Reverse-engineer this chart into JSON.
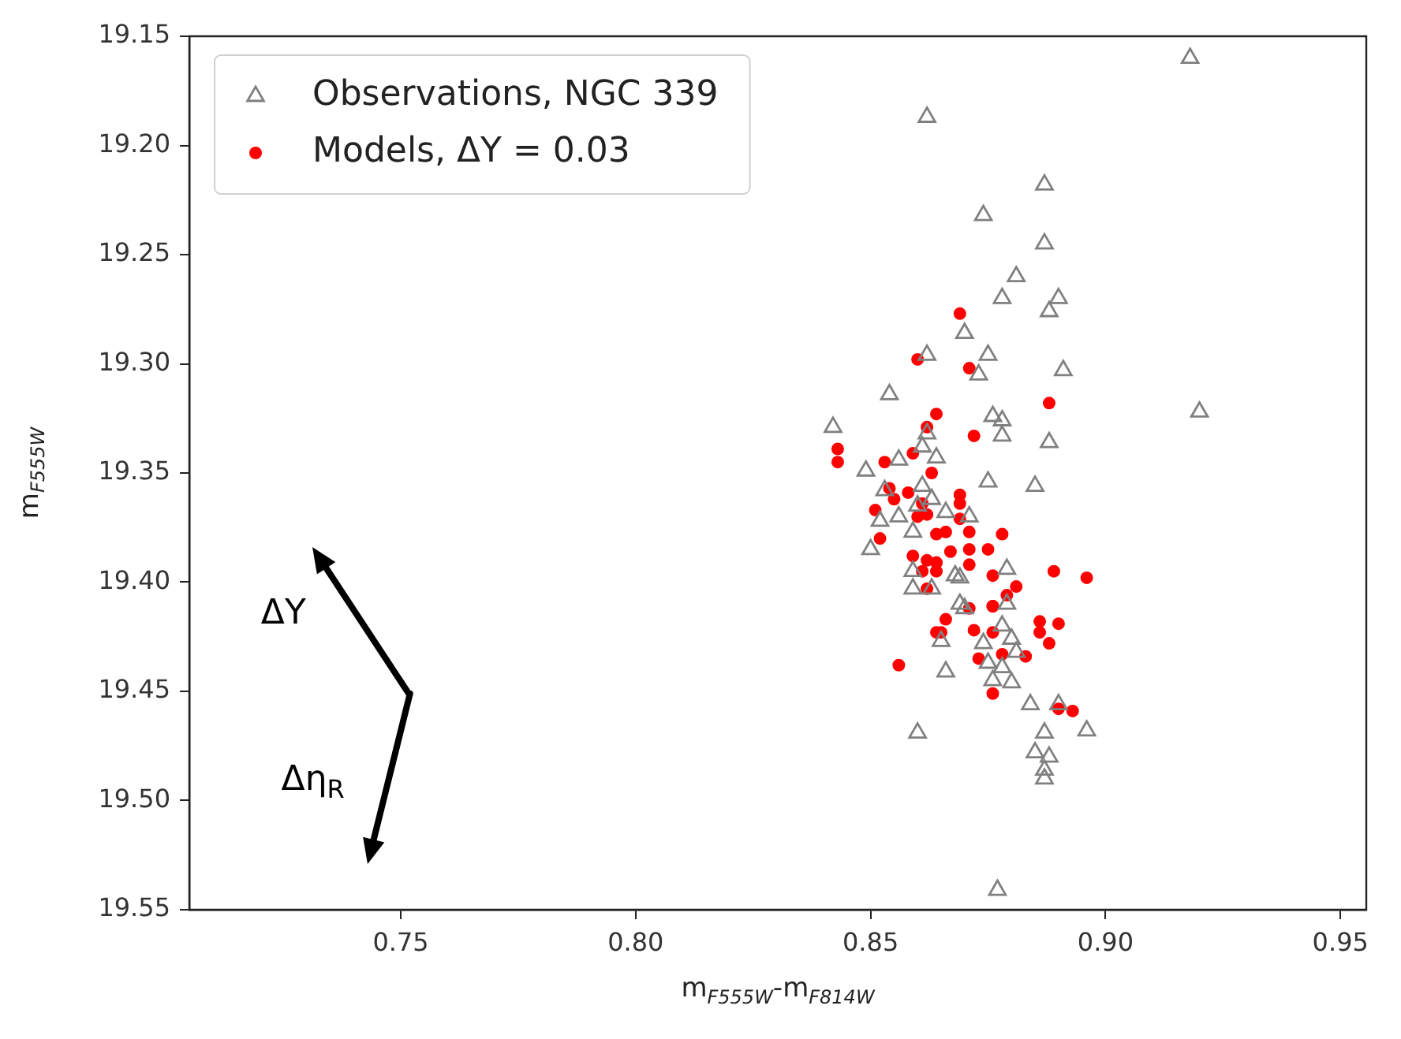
{
  "chart_data": {
    "type": "scatter",
    "xlabel": "m$_{F555W}$-m$_{F814W}$",
    "ylabel": "m$_{F555W}$",
    "xlim": [
      0.705,
      0.9555
    ],
    "xticks": [
      0.75,
      {
        "value": 0.8,
        "label": "0.80"
      },
      0.85,
      {
        "value": 0.9,
        "label": "0.90"
      },
      0.95
    ],
    "ylim": [
      19.55,
      19.15
    ],
    "yticks": [
      19.15,
      {
        "value": 19.2,
        "label": "19.20"
      },
      19.25,
      {
        "value": 19.3,
        "label": "19.30"
      },
      19.35,
      {
        "value": 19.4,
        "label": "19.40"
      },
      19.45,
      {
        "value": 19.5,
        "label": "19.50"
      },
      19.55
    ],
    "grid": false,
    "legend": "top left",
    "annotations": [
      "ΔY",
      "Δη$_{R}$"
    ],
    "series": [
      {
        "name": "Observations, NGC 339",
        "color": "#808080",
        "marker": "triangle",
        "x": [
          0.918,
          0.862,
          0.887,
          0.874,
          0.887,
          0.881,
          0.878,
          0.89,
          0.888,
          0.87,
          0.862,
          0.875,
          0.873,
          0.891,
          0.854,
          0.876,
          0.878,
          0.92,
          0.842,
          0.878,
          0.888,
          0.862,
          0.861,
          0.864,
          0.856,
          0.849,
          0.875,
          0.885,
          0.861,
          0.853,
          0.863,
          0.86,
          0.866,
          0.871,
          0.856,
          0.852,
          0.859,
          0.85,
          0.879,
          0.859,
          0.868,
          0.869,
          0.859,
          0.863,
          0.869,
          0.879,
          0.87,
          0.865,
          0.874,
          0.878,
          0.88,
          0.881,
          0.875,
          0.878,
          0.866,
          0.876,
          0.88,
          0.884,
          0.89,
          0.86,
          0.887,
          0.896,
          0.885,
          0.888,
          0.887,
          0.887,
          0.877
        ],
        "values": [
          19.16,
          19.187,
          19.218,
          19.232,
          19.245,
          19.26,
          19.27,
          19.27,
          19.276,
          19.286,
          19.296,
          19.296,
          19.305,
          19.303,
          19.314,
          19.324,
          19.326,
          19.322,
          19.329,
          19.333,
          19.336,
          19.332,
          19.338,
          19.343,
          19.344,
          19.349,
          19.354,
          19.356,
          19.356,
          19.358,
          19.362,
          19.365,
          19.368,
          19.37,
          19.37,
          19.372,
          19.377,
          19.385,
          19.394,
          19.395,
          19.397,
          19.398,
          19.403,
          19.403,
          19.41,
          19.41,
          19.412,
          19.427,
          19.428,
          19.42,
          19.426,
          19.432,
          19.437,
          19.439,
          19.441,
          19.445,
          19.446,
          19.456,
          19.456,
          19.469,
          19.469,
          19.468,
          19.478,
          19.48,
          19.486,
          19.49,
          19.541
        ]
      },
      {
        "name": "Models, ΔY = 0.03",
        "color": "#ff0000",
        "marker": "circle",
        "x": [
          0.869,
          0.86,
          0.871,
          0.888,
          0.864,
          0.862,
          0.872,
          0.843,
          0.843,
          0.859,
          0.853,
          0.863,
          0.854,
          0.855,
          0.858,
          0.861,
          0.869,
          0.869,
          0.851,
          0.86,
          0.862,
          0.869,
          0.864,
          0.866,
          0.871,
          0.878,
          0.852,
          0.859,
          0.867,
          0.871,
          0.875,
          0.862,
          0.864,
          0.861,
          0.864,
          0.871,
          0.876,
          0.889,
          0.896,
          0.881,
          0.879,
          0.862,
          0.876,
          0.871,
          0.876,
          0.866,
          0.864,
          0.865,
          0.872,
          0.876,
          0.886,
          0.89,
          0.886,
          0.888,
          0.878,
          0.873,
          0.883,
          0.856,
          0.876,
          0.89,
          0.893
        ],
        "values": [
          19.277,
          19.298,
          19.302,
          19.318,
          19.323,
          19.329,
          19.333,
          19.339,
          19.345,
          19.341,
          19.345,
          19.35,
          19.357,
          19.362,
          19.359,
          19.364,
          19.36,
          19.364,
          19.367,
          19.37,
          19.369,
          19.371,
          19.378,
          19.377,
          19.377,
          19.378,
          19.38,
          19.388,
          19.386,
          19.385,
          19.385,
          19.39,
          19.391,
          19.395,
          19.395,
          19.392,
          19.397,
          19.395,
          19.398,
          19.402,
          19.406,
          19.403,
          19.411,
          19.412,
          19.411,
          19.417,
          19.423,
          19.423,
          19.422,
          19.423,
          19.418,
          19.419,
          19.423,
          19.428,
          19.433,
          19.435,
          19.434,
          19.438,
          19.451,
          19.458,
          19.459
        ]
      }
    ]
  }
}
